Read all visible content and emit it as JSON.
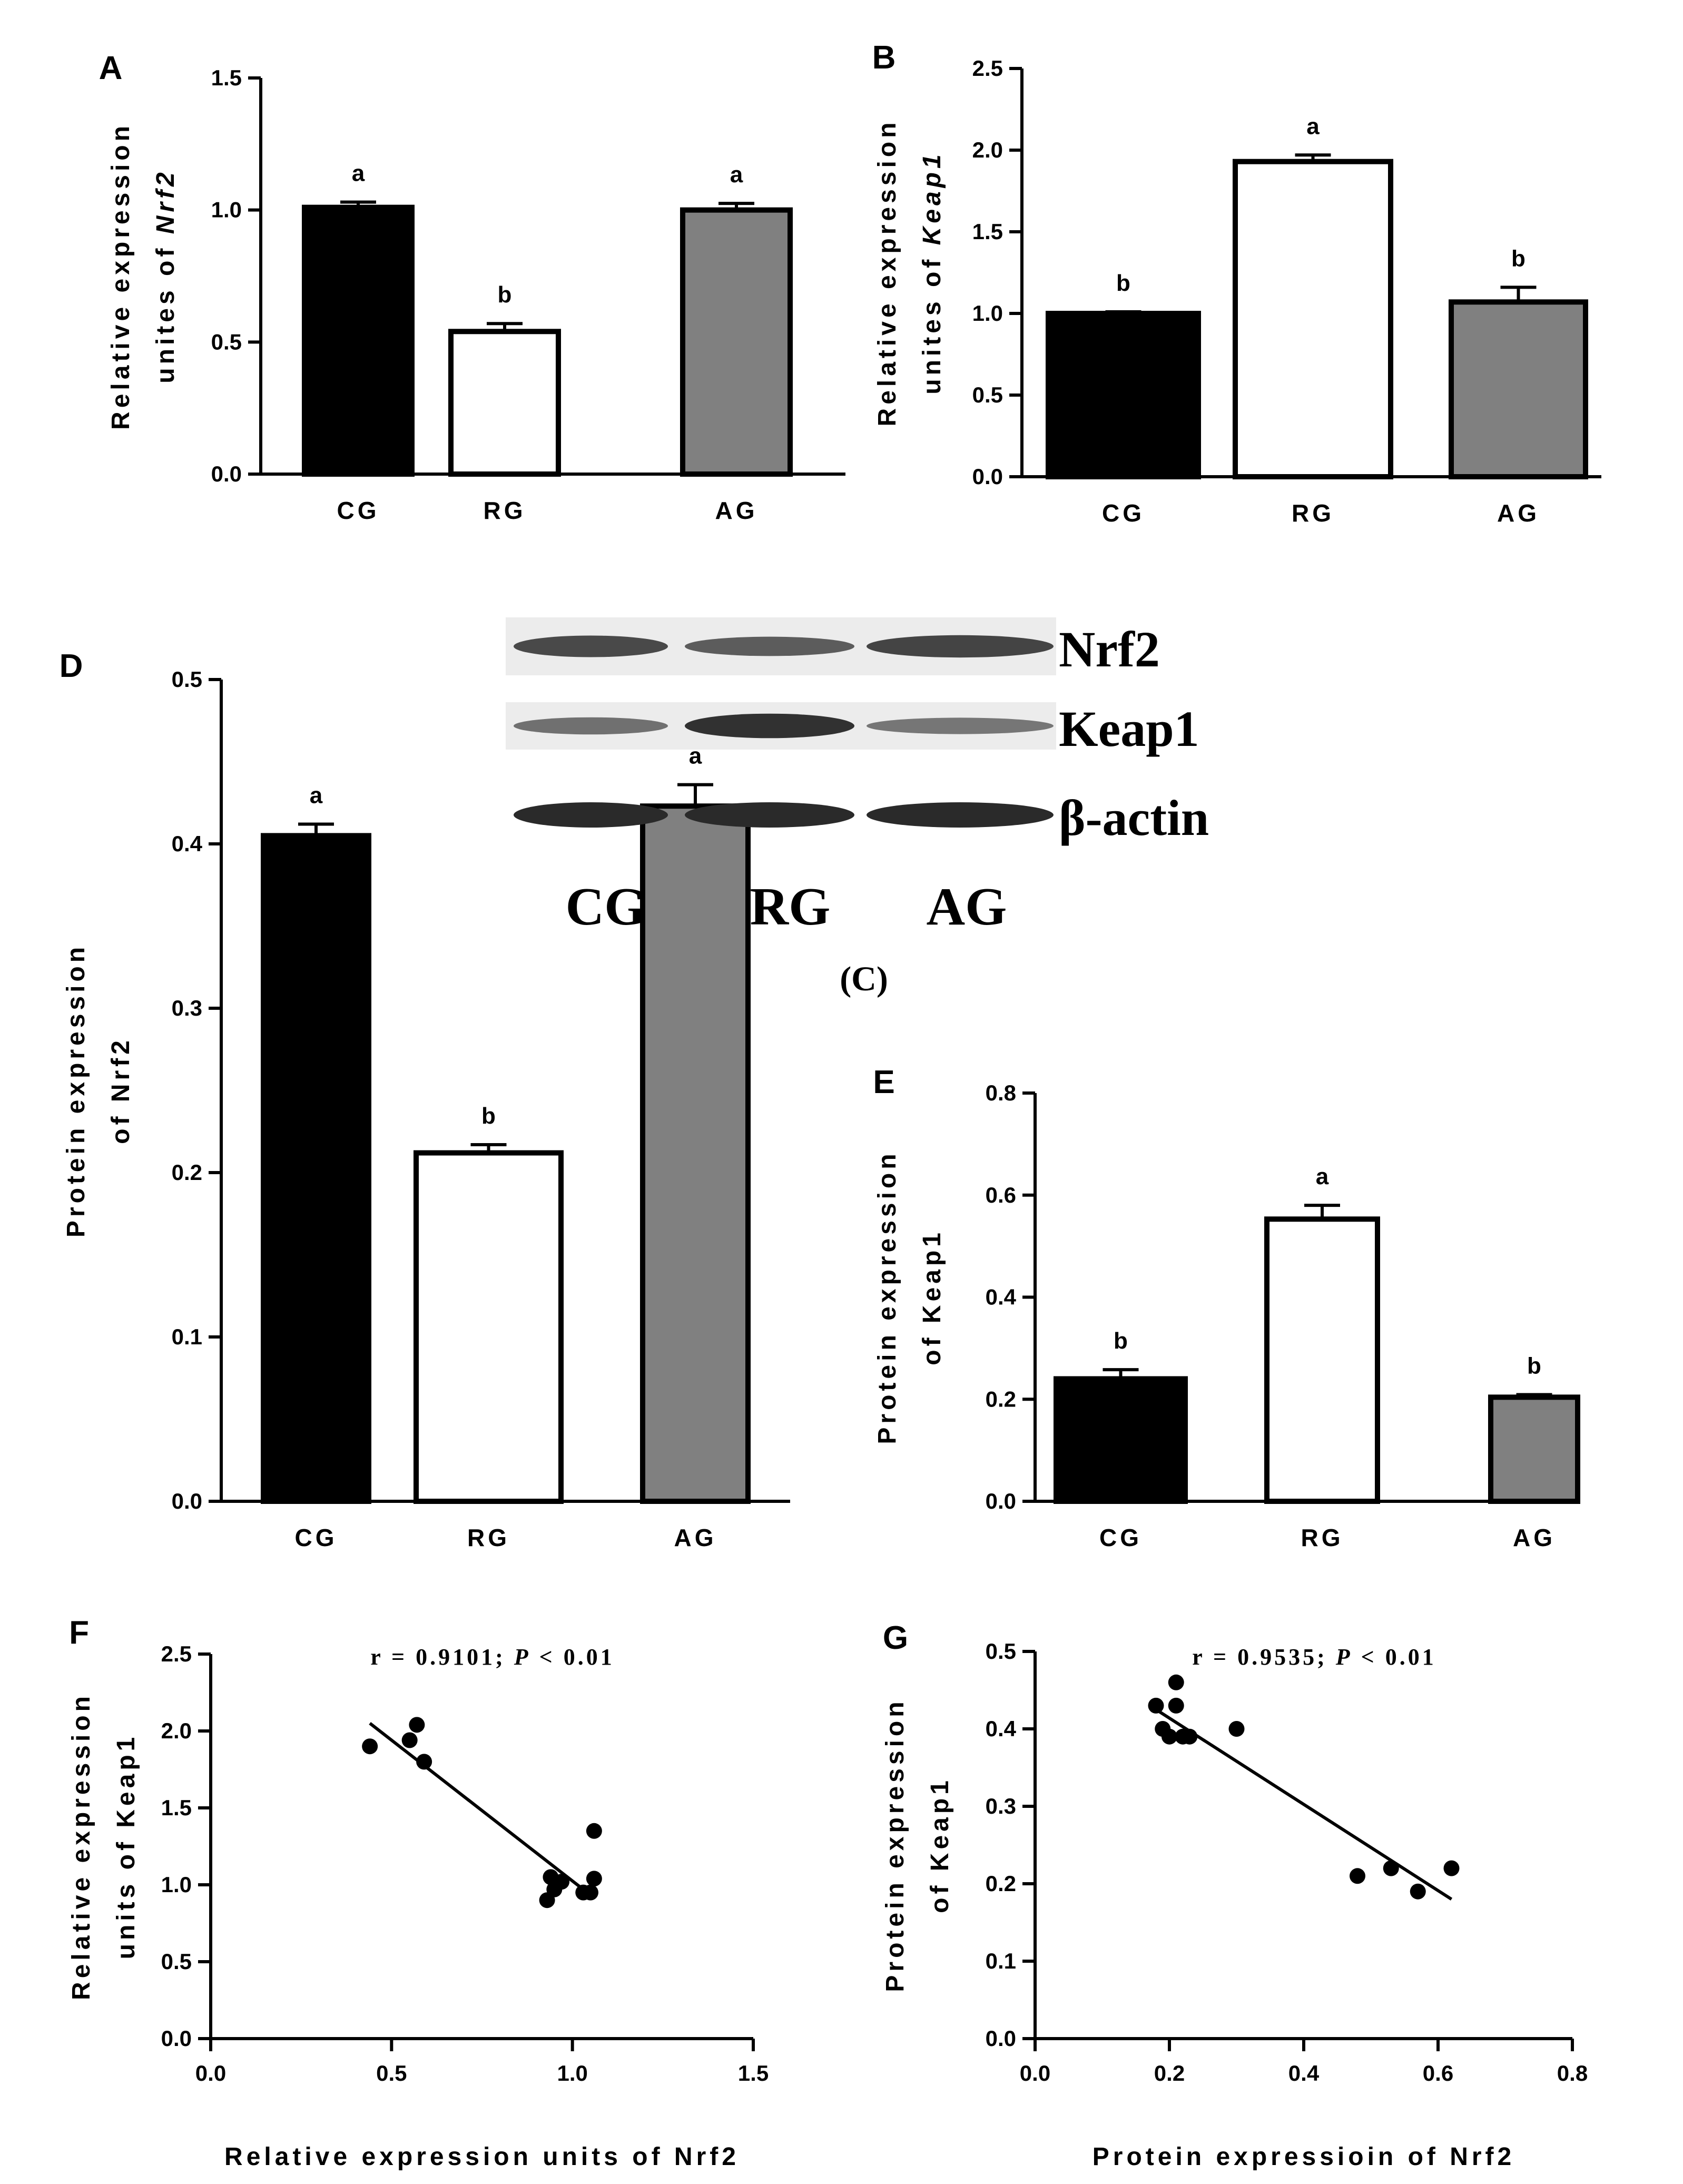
{
  "colors": {
    "axis": "#000000",
    "cg_fill": "#000000",
    "rg_fill": "#ffffff",
    "ag_fill": "#808080",
    "blot_bg": "#ececec",
    "band": "#2a2a2a"
  },
  "chart_data": [
    {
      "id": "A",
      "type": "bar",
      "panel_label": "A",
      "categories": [
        "CG",
        "RG",
        "AG"
      ],
      "values": [
        1.01,
        0.54,
        1.0
      ],
      "errors": [
        0.02,
        0.03,
        0.025
      ],
      "letters": [
        "a",
        "b",
        "a"
      ],
      "ylim": [
        0,
        1.5
      ],
      "yticks": [
        0.0,
        0.5,
        1.0,
        1.5
      ],
      "tick_labels": [
        "0.0",
        "0.5",
        "1.0",
        "1.5"
      ],
      "ylabel_line1": "Relative expression",
      "ylabel_line2_prefix": "unites of ",
      "ylabel_line2_gene": "Nrf2"
    },
    {
      "id": "B",
      "type": "bar",
      "panel_label": "B",
      "categories": [
        "CG",
        "RG",
        "AG"
      ],
      "values": [
        1.0,
        1.93,
        1.07
      ],
      "errors": [
        0.01,
        0.04,
        0.09
      ],
      "letters": [
        "b",
        "a",
        "b"
      ],
      "ylim": [
        0,
        2.5
      ],
      "yticks": [
        0.0,
        0.5,
        1.0,
        1.5,
        2.0,
        2.5
      ],
      "tick_labels": [
        "0.0",
        "0.5",
        "1.0",
        "1.5",
        "2.0",
        "2.5"
      ],
      "ylabel_line1": "Relative expression",
      "ylabel_line2_prefix": "unites of ",
      "ylabel_line2_gene": "Keap1"
    },
    {
      "id": "D",
      "type": "bar",
      "panel_label": "D",
      "categories": [
        "CG",
        "RG",
        "AG"
      ],
      "values": [
        0.405,
        0.212,
        0.423
      ],
      "errors": [
        0.007,
        0.005,
        0.013
      ],
      "letters": [
        "a",
        "b",
        "a"
      ],
      "ylim": [
        0,
        0.5
      ],
      "yticks": [
        0.0,
        0.1,
        0.2,
        0.3,
        0.4,
        0.5
      ],
      "tick_labels": [
        "0.0",
        "0.1",
        "0.2",
        "0.3",
        "0.4",
        "0.5"
      ],
      "ylabel_line1": "Protein expression",
      "ylabel_line2_prefix": "of Nrf2",
      "ylabel_line2_gene": ""
    },
    {
      "id": "E",
      "type": "bar",
      "panel_label": "E",
      "categories": [
        "CG",
        "RG",
        "AG"
      ],
      "values": [
        0.24,
        0.553,
        0.204
      ],
      "errors": [
        0.018,
        0.027,
        0.005
      ],
      "letters": [
        "b",
        "a",
        "b"
      ],
      "ylim": [
        0,
        0.8
      ],
      "yticks": [
        0.0,
        0.2,
        0.4,
        0.6,
        0.8
      ],
      "tick_labels": [
        "0.0",
        "0.2",
        "0.4",
        "0.6",
        "0.8"
      ],
      "ylabel_line1": "Protein expression",
      "ylabel_line2_prefix": "of Keap1",
      "ylabel_line2_gene": ""
    },
    {
      "id": "F",
      "type": "scatter",
      "panel_label": "F",
      "x": [
        0.44,
        0.55,
        0.57,
        0.59,
        0.93,
        0.94,
        0.95,
        0.97,
        1.03,
        1.05,
        1.06,
        1.06
      ],
      "y": [
        1.9,
        1.94,
        2.04,
        1.8,
        0.9,
        1.05,
        0.97,
        1.02,
        0.95,
        0.95,
        1.04,
        1.35
      ],
      "fit": {
        "x": [
          0.44,
          1.03
        ],
        "y": [
          2.05,
          0.97
        ]
      },
      "xlim": [
        0,
        1.5
      ],
      "ylim": [
        0,
        2.5
      ],
      "xticks": [
        0.0,
        0.5,
        1.0,
        1.5
      ],
      "xtick_labels": [
        "0.0",
        "0.5",
        "1.0",
        "1.5"
      ],
      "yticks": [
        0.0,
        0.5,
        1.0,
        1.5,
        2.0,
        2.5
      ],
      "ytick_labels": [
        "0.0",
        "0.5",
        "1.0",
        "1.5",
        "2.0",
        "2.5"
      ],
      "xlabel": "Relative expression units of Nrf2",
      "ylabel_line1": "Relative expression",
      "ylabel_line2": "units of Keap1",
      "stat_prefix": "r = 0.9101; ",
      "stat_p": "P",
      "stat_suffix": " < 0.01"
    },
    {
      "id": "G",
      "type": "scatter",
      "panel_label": "G",
      "x": [
        0.18,
        0.19,
        0.2,
        0.21,
        0.21,
        0.22,
        0.23,
        0.3,
        0.48,
        0.53,
        0.57,
        0.62
      ],
      "y": [
        0.43,
        0.4,
        0.39,
        0.46,
        0.43,
        0.39,
        0.39,
        0.4,
        0.21,
        0.22,
        0.19,
        0.22
      ],
      "fit": {
        "x": [
          0.18,
          0.62
        ],
        "y": [
          0.425,
          0.18
        ]
      },
      "xlim": [
        0,
        0.8
      ],
      "ylim": [
        0,
        0.5
      ],
      "xticks": [
        0.0,
        0.2,
        0.4,
        0.6,
        0.8
      ],
      "xtick_labels": [
        "0.0",
        "0.2",
        "0.4",
        "0.6",
        "0.8"
      ],
      "yticks": [
        0.0,
        0.1,
        0.2,
        0.3,
        0.4,
        0.5
      ],
      "ytick_labels": [
        "0.0",
        "0.1",
        "0.2",
        "0.3",
        "0.4",
        "0.5"
      ],
      "xlabel": "Protein expressioin of Nrf2",
      "ylabel_line1": "Protein expression",
      "ylabel_line2": "of Keap1",
      "stat_prefix": "r = 0.9535; ",
      "stat_p": "P",
      "stat_suffix": " < 0.01"
    }
  ],
  "blot": {
    "rows": [
      {
        "label": "Nrf2",
        "intensity": [
          0.75,
          0.6,
          0.8
        ]
      },
      {
        "label": "Keap1",
        "intensity": [
          0.45,
          0.95,
          0.4
        ]
      },
      {
        "label": "β-actin",
        "intensity": [
          1.0,
          1.0,
          1.0
        ]
      }
    ],
    "lanes": [
      "CG",
      "RG",
      "AG"
    ],
    "caption": "(C)"
  }
}
